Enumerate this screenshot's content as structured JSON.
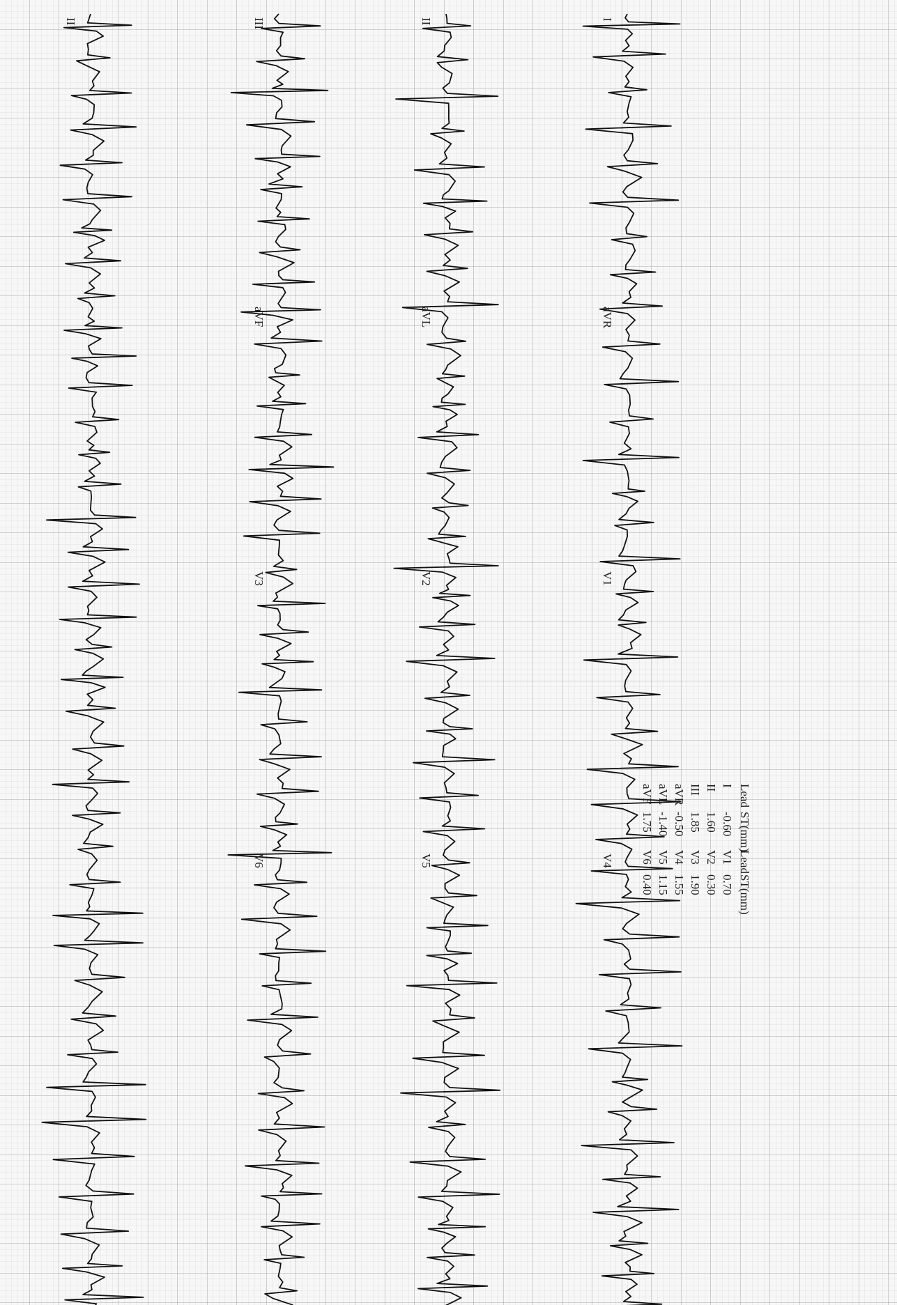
{
  "leads": [
    [
      "I",
      "aVR",
      "V1",
      "V4"
    ],
    [
      "II",
      "aVL",
      "V2",
      "V5"
    ],
    [
      "III",
      "aVF",
      "V3",
      "V6"
    ],
    [
      "II"
    ]
  ],
  "st_table": {
    "header": [
      "Lead",
      "ST(mm)",
      "Lead",
      "ST(mm)"
    ],
    "rows": [
      [
        "I",
        "-0.60",
        "V1",
        "0.70"
      ],
      [
        "II",
        "1.60",
        "V2",
        "0.30"
      ],
      [
        "III",
        "1.85",
        "V3",
        "1.90"
      ],
      [
        "aVR",
        "-0.50",
        "V4",
        "1.55"
      ],
      [
        "aVL",
        "-1.40",
        "V5",
        "1.15"
      ],
      [
        "aVF",
        "1.75",
        "V6",
        "0.40"
      ]
    ]
  }
}
